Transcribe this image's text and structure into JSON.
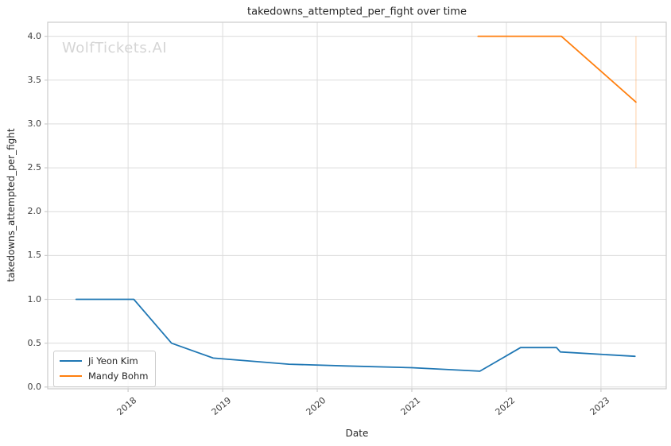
{
  "watermark": "WolfTickets.AI",
  "chart_data": {
    "type": "line",
    "title": "takedowns_attempted_per_fight over time",
    "xlabel": "Date",
    "ylabel": "takedowns_attempted_per_fight",
    "grid": true,
    "legend_position": "lower left",
    "x_axis": {
      "unit": "year",
      "tick_labels": [
        "2018",
        "2019",
        "2020",
        "2021",
        "2022",
        "2023"
      ],
      "tick_values": [
        2018,
        2019,
        2020,
        2021,
        2022,
        2023
      ],
      "range": [
        2017.15,
        2023.69
      ]
    },
    "y_axis": {
      "tick_labels": [
        "0.0",
        "0.5",
        "1.0",
        "1.5",
        "2.0",
        "2.5",
        "3.0",
        "3.5",
        "4.0"
      ],
      "tick_values": [
        0,
        0.5,
        1,
        1.5,
        2,
        2.5,
        3,
        3.5,
        4
      ],
      "range": [
        -0.02,
        4.16
      ]
    },
    "series": [
      {
        "name": "Ji Yeon Kim",
        "color": "#1f77b4",
        "points": [
          [
            2017.45,
            1.0
          ],
          [
            2018.06,
            1.0
          ],
          [
            2018.46,
            0.5
          ],
          [
            2018.9,
            0.33
          ],
          [
            2019.7,
            0.26
          ],
          [
            2020.3,
            0.24
          ],
          [
            2021.0,
            0.22
          ],
          [
            2021.72,
            0.18
          ],
          [
            2022.15,
            0.45
          ],
          [
            2022.53,
            0.45
          ],
          [
            2022.57,
            0.4
          ],
          [
            2023.36,
            0.35
          ]
        ]
      },
      {
        "name": "Mandy Bohm",
        "color": "#ff7f0e",
        "points": [
          [
            2021.7,
            4.0
          ],
          [
            2022.58,
            4.0
          ],
          [
            2023.37,
            3.25
          ]
        ],
        "range_bar": {
          "x": 2023.37,
          "y_low": 2.5,
          "y_high": 4.0
        }
      }
    ]
  },
  "style": {
    "background": "#ffffff",
    "grid_color": "#dcdcdc",
    "spine_color": "#cccccc",
    "title_color": "#262626",
    "tick_text_color": "#3d3d3d",
    "watermark_color": "#d5d5d5"
  }
}
